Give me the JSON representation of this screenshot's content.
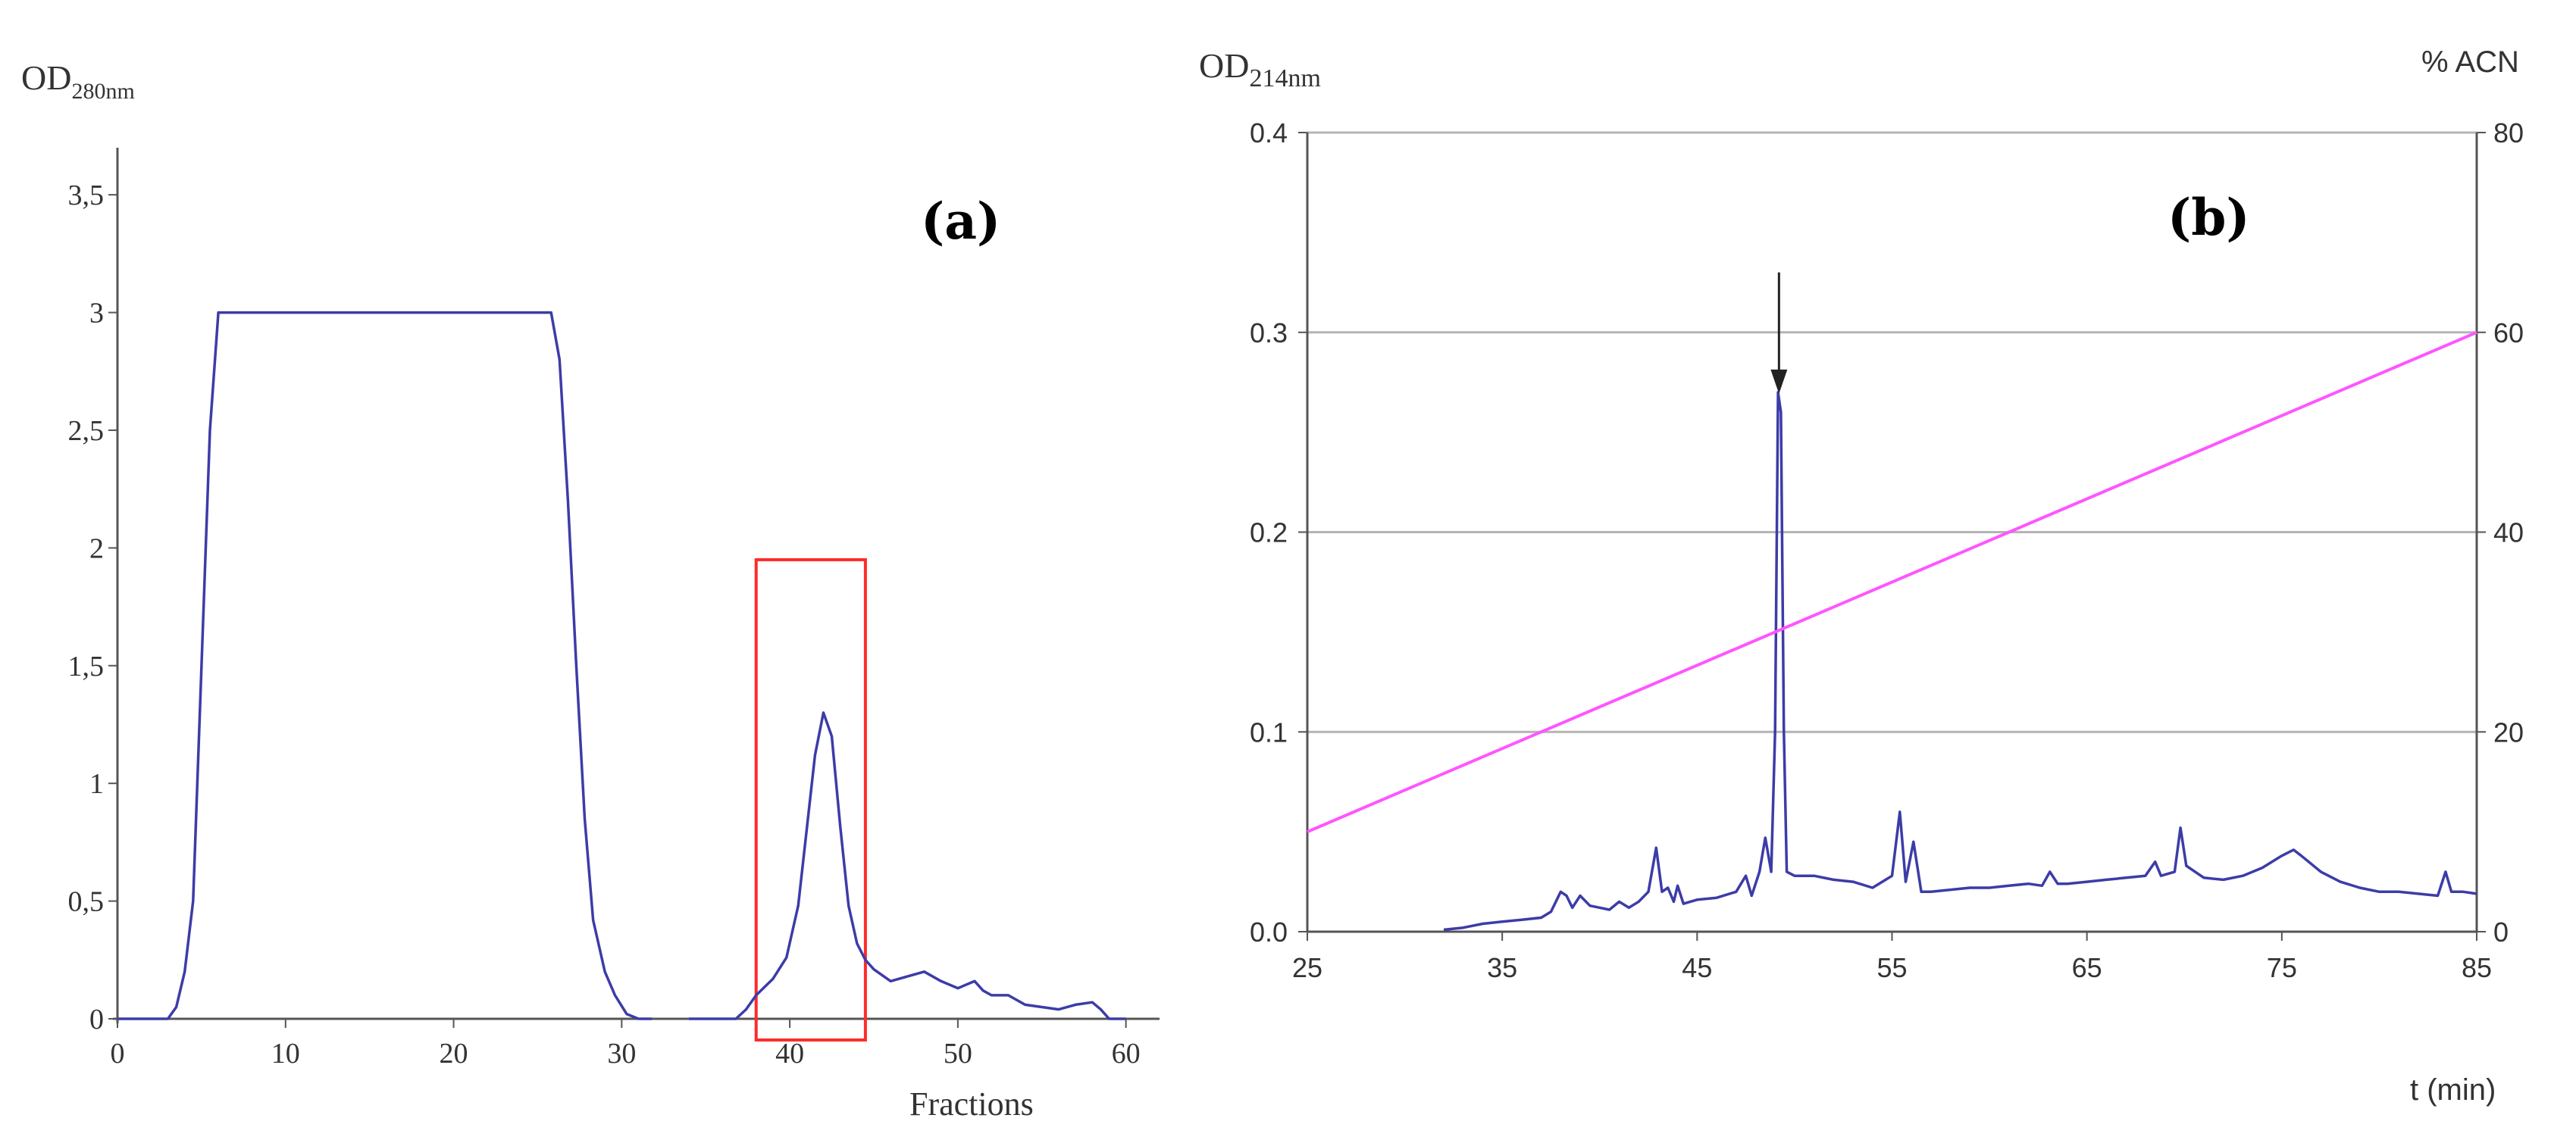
{
  "figure": {
    "colors": {
      "trace": "#3c3ca8",
      "gradient": "#ff55ff",
      "highlight": "#ff2a2a",
      "grid": "#b4b4b4",
      "axis": "#555555",
      "text": "#333333"
    }
  },
  "chart_data": [
    {
      "type": "line",
      "panel_label": "(a)",
      "ylabel_main": "OD",
      "ylabel_sub": "280nm",
      "xlabel": "Fractions",
      "xlim": [
        0,
        62
      ],
      "ylim": [
        0,
        3.7
      ],
      "x_ticks": [
        0,
        10,
        20,
        30,
        40,
        50,
        60
      ],
      "x_tick_labels": [
        "0",
        "10",
        "20",
        "30",
        "40",
        "50",
        "60"
      ],
      "y_ticks": [
        0,
        0.5,
        1,
        1.5,
        2,
        2.5,
        3,
        3.5
      ],
      "y_tick_labels": [
        "0",
        "0,5",
        "1",
        "1,5",
        "2",
        "2,5",
        "3",
        "3,5"
      ],
      "grid": false,
      "highlight_box": {
        "x": [
          38,
          44.5
        ],
        "y": [
          -0.09,
          1.95
        ]
      },
      "series": [
        {
          "points": [
            [
              0,
              0
            ],
            [
              1,
              0
            ],
            [
              2,
              0
            ],
            [
              3,
              0
            ],
            [
              3.5,
              0.05
            ],
            [
              4,
              0.2
            ],
            [
              4.5,
              0.5
            ],
            [
              5,
              1.5
            ],
            [
              5.5,
              2.5
            ],
            [
              6,
              3.0
            ],
            [
              7,
              3.0
            ],
            [
              8,
              3.0
            ],
            [
              9,
              3.0
            ],
            [
              10,
              3.0
            ],
            [
              11,
              3.0
            ],
            [
              12,
              3.0
            ],
            [
              13,
              3.0
            ],
            [
              14,
              3.0
            ],
            [
              15,
              3.0
            ],
            [
              16,
              3.0
            ],
            [
              17,
              3.0
            ],
            [
              18,
              3.0
            ],
            [
              19,
              3.0
            ],
            [
              20,
              3.0
            ],
            [
              21,
              3.0
            ],
            [
              22,
              3.0
            ],
            [
              23,
              3.0
            ],
            [
              24,
              3.0
            ],
            [
              25,
              3.0
            ],
            [
              25.8,
              3.0
            ],
            [
              26.3,
              2.8
            ],
            [
              26.8,
              2.2
            ],
            [
              27.3,
              1.5
            ],
            [
              27.8,
              0.85
            ],
            [
              28.3,
              0.42
            ],
            [
              29,
              0.2
            ],
            [
              29.6,
              0.1
            ],
            [
              30.3,
              0.02
            ],
            [
              31,
              0
            ],
            [
              31.8,
              0
            ]
          ]
        },
        {
          "points": [
            [
              34,
              0
            ],
            [
              35,
              0
            ],
            [
              36,
              0
            ],
            [
              36.8,
              0
            ],
            [
              37.4,
              0.04
            ],
            [
              38,
              0.1
            ],
            [
              39,
              0.17
            ],
            [
              39.8,
              0.26
            ],
            [
              40.5,
              0.48
            ],
            [
              41,
              0.8
            ],
            [
              41.5,
              1.12
            ],
            [
              42,
              1.3
            ],
            [
              42.5,
              1.2
            ],
            [
              43,
              0.82
            ],
            [
              43.5,
              0.48
            ],
            [
              44,
              0.32
            ],
            [
              44.5,
              0.25
            ],
            [
              45,
              0.21
            ],
            [
              46,
              0.16
            ],
            [
              47,
              0.18
            ],
            [
              48,
              0.2
            ],
            [
              49,
              0.16
            ],
            [
              50,
              0.13
            ],
            [
              51,
              0.16
            ],
            [
              51.5,
              0.12
            ],
            [
              52,
              0.1
            ],
            [
              53,
              0.1
            ],
            [
              54,
              0.06
            ],
            [
              55,
              0.05
            ],
            [
              56,
              0.04
            ],
            [
              57,
              0.06
            ],
            [
              58,
              0.07
            ],
            [
              58.5,
              0.04
            ],
            [
              59,
              0.0
            ],
            [
              60,
              0
            ]
          ]
        }
      ]
    },
    {
      "type": "line",
      "panel_label": "(b)",
      "ylabel_main": "OD",
      "ylabel_sub": "214nm",
      "ylabel_right": "% ACN",
      "xlabel": "t (min)",
      "xlim": [
        25,
        85
      ],
      "ylim": [
        0,
        0.4
      ],
      "y2lim": [
        0,
        80
      ],
      "x_ticks": [
        25,
        35,
        45,
        55,
        65,
        75,
        85
      ],
      "x_tick_labels": [
        "25",
        "35",
        "45",
        "55",
        "65",
        "75",
        "85"
      ],
      "y_ticks": [
        0,
        0.1,
        0.2,
        0.3,
        0.4
      ],
      "y_tick_labels": [
        "0.0",
        "0.1",
        "0.2",
        "0.3",
        "0.4"
      ],
      "y2_ticks": [
        0,
        20,
        40,
        60,
        80
      ],
      "y2_tick_labels": [
        "0",
        "20",
        "40",
        "60",
        "80"
      ],
      "grid": true,
      "arrow": {
        "x": 49.2,
        "y_from": 0.33,
        "y_to": 0.27
      },
      "series": [
        {
          "axis": "left",
          "points": [
            [
              32,
              0.001
            ],
            [
              33,
              0.002
            ],
            [
              34,
              0.004
            ],
            [
              35,
              0.005
            ],
            [
              36,
              0.006
            ],
            [
              37,
              0.007
            ],
            [
              37.5,
              0.01
            ],
            [
              38,
              0.02
            ],
            [
              38.3,
              0.018
            ],
            [
              38.6,
              0.012
            ],
            [
              39,
              0.018
            ],
            [
              39.5,
              0.013
            ],
            [
              40,
              0.012
            ],
            [
              40.5,
              0.011
            ],
            [
              41,
              0.015
            ],
            [
              41.5,
              0.012
            ],
            [
              42,
              0.015
            ],
            [
              42.5,
              0.02
            ],
            [
              42.9,
              0.042
            ],
            [
              43.2,
              0.02
            ],
            [
              43.5,
              0.022
            ],
            [
              43.8,
              0.015
            ],
            [
              44,
              0.023
            ],
            [
              44.3,
              0.014
            ],
            [
              45,
              0.016
            ],
            [
              46,
              0.017
            ],
            [
              47,
              0.02
            ],
            [
              47.5,
              0.028
            ],
            [
              47.8,
              0.018
            ],
            [
              48.2,
              0.03
            ],
            [
              48.5,
              0.047
            ],
            [
              48.8,
              0.03
            ],
            [
              49,
              0.1
            ],
            [
              49.15,
              0.27
            ],
            [
              49.3,
              0.26
            ],
            [
              49.45,
              0.1
            ],
            [
              49.6,
              0.03
            ],
            [
              50,
              0.028
            ],
            [
              51,
              0.028
            ],
            [
              52,
              0.026
            ],
            [
              53,
              0.025
            ],
            [
              54,
              0.022
            ],
            [
              55,
              0.028
            ],
            [
              55.4,
              0.06
            ],
            [
              55.7,
              0.025
            ],
            [
              56.1,
              0.045
            ],
            [
              56.5,
              0.02
            ],
            [
              57,
              0.02
            ],
            [
              58,
              0.021
            ],
            [
              59,
              0.022
            ],
            [
              60,
              0.022
            ],
            [
              61,
              0.023
            ],
            [
              62,
              0.024
            ],
            [
              62.7,
              0.023
            ],
            [
              63.1,
              0.03
            ],
            [
              63.5,
              0.024
            ],
            [
              64,
              0.024
            ],
            [
              65,
              0.025
            ],
            [
              66,
              0.026
            ],
            [
              67,
              0.027
            ],
            [
              68,
              0.028
            ],
            [
              68.5,
              0.035
            ],
            [
              68.8,
              0.028
            ],
            [
              69.5,
              0.03
            ],
            [
              69.8,
              0.052
            ],
            [
              70.1,
              0.033
            ],
            [
              71,
              0.027
            ],
            [
              72,
              0.026
            ],
            [
              73,
              0.028
            ],
            [
              74,
              0.032
            ],
            [
              75,
              0.038
            ],
            [
              75.6,
              0.041
            ],
            [
              76,
              0.038
            ],
            [
              77,
              0.03
            ],
            [
              78,
              0.025
            ],
            [
              79,
              0.022
            ],
            [
              80,
              0.02
            ],
            [
              81,
              0.02
            ],
            [
              82,
              0.019
            ],
            [
              83,
              0.018
            ],
            [
              83.4,
              0.03
            ],
            [
              83.7,
              0.02
            ],
            [
              84.3,
              0.02
            ],
            [
              85,
              0.019
            ]
          ]
        },
        {
          "axis": "right",
          "points": [
            [
              25,
              10
            ],
            [
              85,
              60
            ]
          ]
        }
      ]
    }
  ]
}
